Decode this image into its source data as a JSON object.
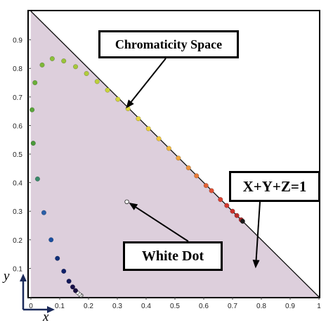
{
  "chart_data": {
    "type": "scatter",
    "title": "",
    "xlabel": "x",
    "ylabel": "y",
    "xlim": [
      0,
      1
    ],
    "ylim": [
      0,
      1
    ],
    "xticks": [
      "0",
      "0.1",
      "0.2",
      "0.3",
      "0.4",
      "0.5",
      "0.6",
      "0.7",
      "0.8",
      "0.9",
      "1"
    ],
    "yticks": [
      "0.1",
      "0.2",
      "0.3",
      "0.4",
      "0.5",
      "0.6",
      "0.7",
      "0.8",
      "0.9"
    ],
    "region_color": "#ddcfdc",
    "boundary_line": {
      "label": "X+Y+Z=1",
      "from": [
        0,
        1
      ],
      "to": [
        1,
        0
      ]
    },
    "spectral_locus": [
      {
        "x": 0.175,
        "y": 0.005,
        "color": "#ffffff"
      },
      {
        "x": 0.172,
        "y": 0.006,
        "color": "#ffffff"
      },
      {
        "x": 0.168,
        "y": 0.01,
        "color": "#ffffff"
      },
      {
        "x": 0.162,
        "y": 0.015,
        "color": "#ffffff"
      },
      {
        "x": 0.155,
        "y": 0.022,
        "color": "#1a1040"
      },
      {
        "x": 0.145,
        "y": 0.035,
        "color": "#181048"
      },
      {
        "x": 0.132,
        "y": 0.055,
        "color": "#141a5a"
      },
      {
        "x": 0.114,
        "y": 0.09,
        "color": "#10206a"
      },
      {
        "x": 0.092,
        "y": 0.135,
        "color": "#10307a"
      },
      {
        "x": 0.07,
        "y": 0.2,
        "color": "#1a4fa0"
      },
      {
        "x": 0.045,
        "y": 0.295,
        "color": "#2a5fa8"
      },
      {
        "x": 0.023,
        "y": 0.413,
        "color": "#3a8a6a"
      },
      {
        "x": 0.008,
        "y": 0.538,
        "color": "#4a9a3a"
      },
      {
        "x": 0.004,
        "y": 0.655,
        "color": "#5aa53a"
      },
      {
        "x": 0.014,
        "y": 0.75,
        "color": "#6aaf38"
      },
      {
        "x": 0.039,
        "y": 0.812,
        "color": "#7eb838"
      },
      {
        "x": 0.074,
        "y": 0.834,
        "color": "#8cc03a"
      },
      {
        "x": 0.114,
        "y": 0.826,
        "color": "#9ac43a"
      },
      {
        "x": 0.155,
        "y": 0.806,
        "color": "#a6c83c"
      },
      {
        "x": 0.193,
        "y": 0.782,
        "color": "#b0cc3c"
      },
      {
        "x": 0.23,
        "y": 0.754,
        "color": "#bcd03c"
      },
      {
        "x": 0.266,
        "y": 0.724,
        "color": "#c8d43c"
      },
      {
        "x": 0.302,
        "y": 0.692,
        "color": "#d2d43c"
      },
      {
        "x": 0.337,
        "y": 0.659,
        "color": "#dcd63a"
      },
      {
        "x": 0.373,
        "y": 0.624,
        "color": "#e6d43a"
      },
      {
        "x": 0.408,
        "y": 0.589,
        "color": "#ecd03a"
      },
      {
        "x": 0.444,
        "y": 0.554,
        "color": "#f0c63a"
      },
      {
        "x": 0.479,
        "y": 0.52,
        "color": "#f2b83a"
      },
      {
        "x": 0.512,
        "y": 0.486,
        "color": "#f0a43a"
      },
      {
        "x": 0.547,
        "y": 0.452,
        "color": "#ec903a"
      },
      {
        "x": 0.575,
        "y": 0.424,
        "color": "#e87a38"
      },
      {
        "x": 0.608,
        "y": 0.39,
        "color": "#e26236"
      },
      {
        "x": 0.627,
        "y": 0.372,
        "color": "#dc5034"
      },
      {
        "x": 0.658,
        "y": 0.341,
        "color": "#d84232"
      },
      {
        "x": 0.68,
        "y": 0.32,
        "color": "#d23a30"
      },
      {
        "x": 0.7,
        "y": 0.3,
        "color": "#c8322c"
      },
      {
        "x": 0.715,
        "y": 0.285,
        "color": "#bc2e2a"
      },
      {
        "x": 0.73,
        "y": 0.27,
        "color": "#a82828"
      },
      {
        "x": 0.735,
        "y": 0.265,
        "color": "#1a1a1a"
      }
    ],
    "white_point": {
      "x": 0.333,
      "y": 0.333
    },
    "annotations": [
      {
        "id": "chromaticity",
        "text": "Chromaticity Space",
        "target": [
          0.33,
          0.66
        ]
      },
      {
        "id": "xyz",
        "text": "X+Y+Z=1",
        "target": [
          0.78,
          0.1
        ]
      },
      {
        "id": "white",
        "text": "White Dot",
        "target": [
          0.34,
          0.33
        ]
      }
    ]
  }
}
